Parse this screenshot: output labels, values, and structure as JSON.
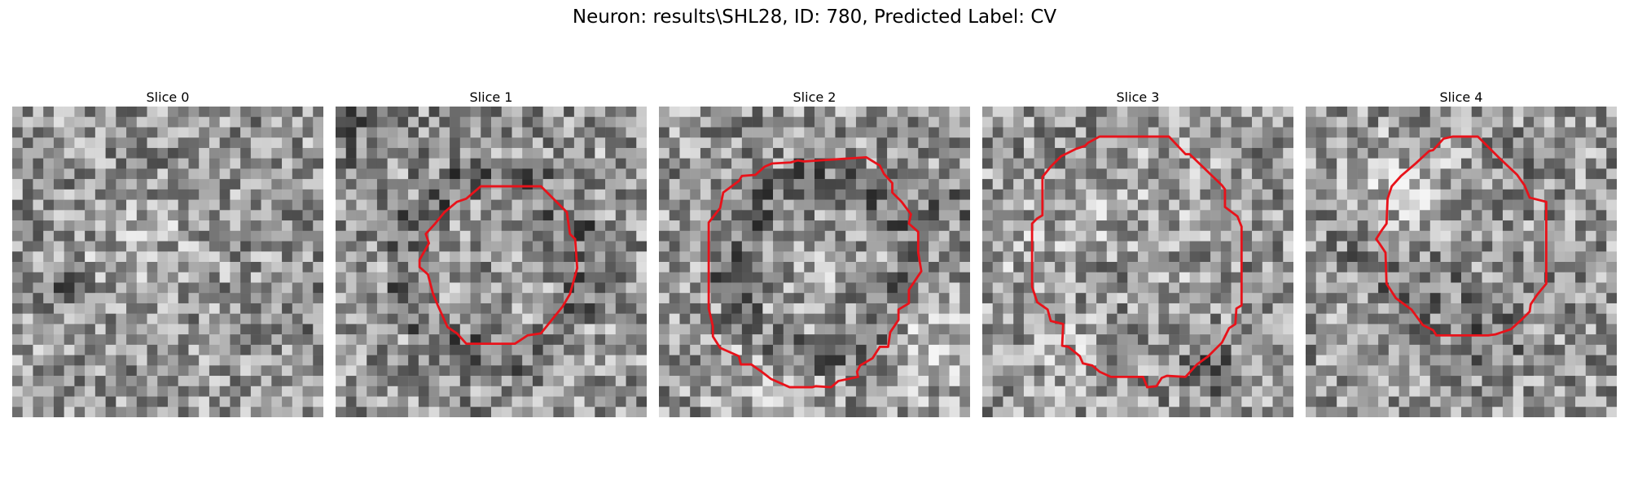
{
  "figure": {
    "title": "Neuron: results\\SHL28, ID: 780, Predicted Label: CV"
  },
  "slices": [
    {
      "label": "Slice 0",
      "seed": 11,
      "has_contour": false,
      "dark_ring": false
    },
    {
      "label": "Slice 1",
      "seed": 23,
      "has_contour": true,
      "dark_ring": true
    },
    {
      "label": "Slice 2",
      "seed": 37,
      "has_contour": true,
      "dark_ring": true
    },
    {
      "label": "Slice 3",
      "seed": 41,
      "has_contour": true,
      "dark_ring": false
    },
    {
      "label": "Slice 4",
      "seed": 59,
      "has_contour": true,
      "dark_ring": false
    }
  ],
  "colors": {
    "contour": "#e8121a",
    "background": "#ffffff"
  }
}
